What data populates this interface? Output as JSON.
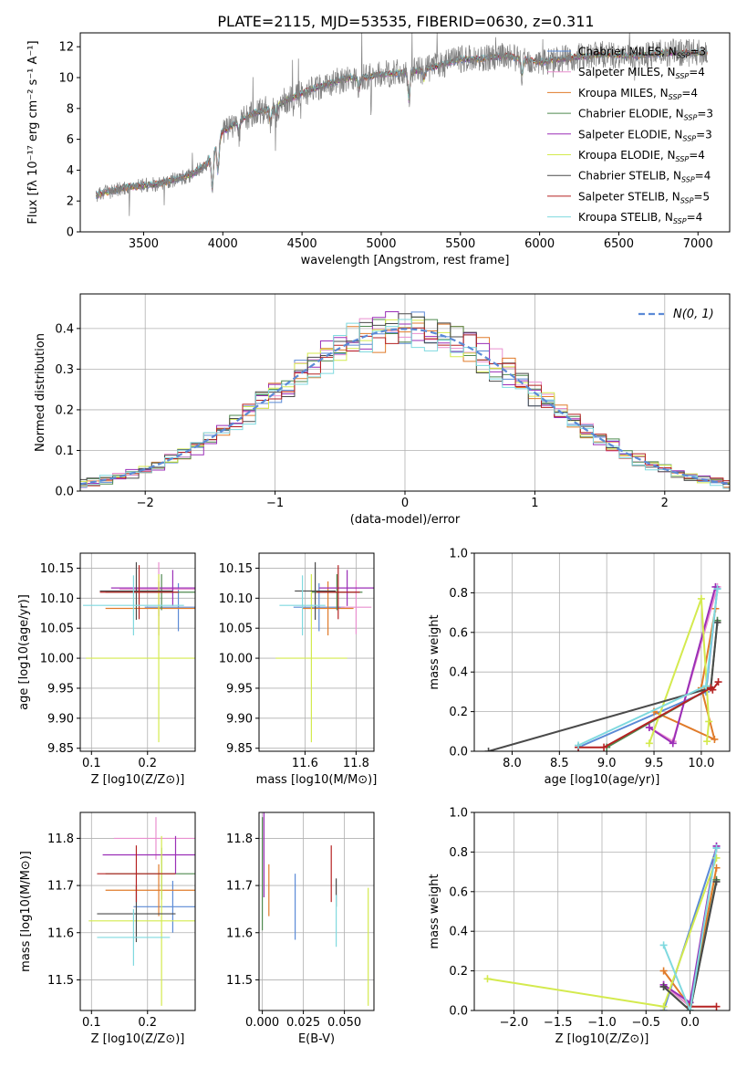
{
  "figure_title": "PLATE=2115, MJD=53535, FIBERID=0630, z=0.311",
  "colors": {
    "Chabrier MILES": "#5b8ad6",
    "Salpeter MILES": "#e98fcf",
    "Kroupa MILES": "#e07b2a",
    "Chabrier ELODIE": "#4f8a4f",
    "Salpeter ELODIE": "#9b2fb7",
    "Kroupa ELODIE": "#d4ea4e",
    "Chabrier STELIB": "#4a4a4a",
    "Salpeter STELIB": "#b52222",
    "Kroupa STELIB": "#7fd9df",
    "data": "#7f7f7f",
    "gauss": "#5b8ad6"
  },
  "chart_data": [
    {
      "id": "spectrum",
      "type": "line",
      "title": "PLATE=2115, MJD=53535, FIBERID=0630, z=0.311",
      "xlabel": "wavelength [Angstrom, rest frame]",
      "ylabel": "Flux [fλ 10⁻¹⁷ erg cm⁻² s⁻¹ A⁻¹]",
      "xlim": [
        3100,
        7200
      ],
      "ylim": [
        0,
        12.9
      ],
      "xticks": [
        3500,
        4000,
        4500,
        5000,
        5500,
        6000,
        6500,
        7000
      ],
      "yticks": [
        0,
        2,
        4,
        6,
        8,
        10,
        12
      ],
      "legend": [
        {
          "label": "Chabrier MILES, N",
          "sub": "SSP",
          "tail": "=3",
          "color_key": "Chabrier MILES"
        },
        {
          "label": "Salpeter MILES, N",
          "sub": "SSP",
          "tail": "=4",
          "color_key": "Salpeter MILES"
        },
        {
          "label": "Kroupa MILES, N",
          "sub": "SSP",
          "tail": "=4",
          "color_key": "Kroupa MILES"
        },
        {
          "label": "Chabrier ELODIE, N",
          "sub": "SSP",
          "tail": "=3",
          "color_key": "Chabrier ELODIE"
        },
        {
          "label": "Salpeter ELODIE, N",
          "sub": "SSP",
          "tail": "=3",
          "color_key": "Salpeter ELODIE"
        },
        {
          "label": "Kroupa ELODIE, N",
          "sub": "SSP",
          "tail": "=4",
          "color_key": "Kroupa ELODIE"
        },
        {
          "label": "Chabrier STELIB, N",
          "sub": "SSP",
          "tail": "=4",
          "color_key": "Chabrier STELIB"
        },
        {
          "label": "Salpeter STELIB, N",
          "sub": "SSP",
          "tail": "=5",
          "color_key": "Salpeter STELIB"
        },
        {
          "label": "Kroupa STELIB, N",
          "sub": "SSP",
          "tail": "=4",
          "color_key": "Kroupa STELIB"
        }
      ],
      "continuum": [
        [
          3200,
          2.4
        ],
        [
          3400,
          2.9
        ],
        [
          3500,
          3.0
        ],
        [
          3600,
          3.1
        ],
        [
          3700,
          3.4
        ],
        [
          3800,
          3.7
        ],
        [
          3900,
          4.4
        ],
        [
          4000,
          6.5
        ],
        [
          4100,
          7.2
        ],
        [
          4200,
          7.7
        ],
        [
          4300,
          8.0
        ],
        [
          4400,
          8.5
        ],
        [
          4500,
          9.0
        ],
        [
          4600,
          9.4
        ],
        [
          4700,
          9.7
        ],
        [
          4800,
          10.0
        ],
        [
          4900,
          10.0
        ],
        [
          5000,
          10.2
        ],
        [
          5100,
          10.3
        ],
        [
          5200,
          10.4
        ],
        [
          5300,
          10.6
        ],
        [
          5400,
          10.9
        ],
        [
          5500,
          11.2
        ],
        [
          5600,
          11.2
        ],
        [
          5700,
          11.3
        ],
        [
          5800,
          11.4
        ],
        [
          5900,
          11.2
        ],
        [
          6000,
          11.0
        ],
        [
          6200,
          11.3
        ],
        [
          6400,
          11.5
        ],
        [
          6600,
          11.4
        ],
        [
          6800,
          11.6
        ],
        [
          7000,
          11.6
        ]
      ],
      "absorption": [
        [
          3934,
          2.3
        ],
        [
          3969,
          2.0
        ],
        [
          4102,
          0.8
        ],
        [
          4300,
          0.9
        ],
        [
          4340,
          0.8
        ],
        [
          4861,
          0.8
        ],
        [
          5175,
          1.8
        ],
        [
          5270,
          0.7
        ],
        [
          5890,
          1.0
        ]
      ]
    },
    {
      "id": "residual-histogram",
      "type": "bar",
      "xlabel": "(data-model)/error",
      "ylabel": "Normed distribution",
      "xlim": [
        -2.5,
        2.5
      ],
      "ylim": [
        0,
        0.485
      ],
      "xticks": [
        -2,
        -1,
        0,
        1,
        2
      ],
      "yticks": [
        0.0,
        0.1,
        0.2,
        0.3,
        0.4
      ],
      "bin_width": 0.1,
      "legend": "N(0, 1)",
      "gaussian": {
        "mean": 0,
        "sigma": 1
      }
    },
    {
      "id": "age-vs-metallicity",
      "type": "scatter",
      "xlabel": "Z [log10(Z/Z⊙)]",
      "ylabel": "age  [log10(age/yr)]",
      "xlim": [
        0.08,
        0.285
      ],
      "ylim": [
        9.845,
        10.175
      ],
      "xticks": [
        0.1,
        0.2
      ],
      "yticks": [
        9.85,
        9.9,
        9.95,
        10.0,
        10.05,
        10.1,
        10.15
      ],
      "points": [
        {
          "key": "Chabrier MILES",
          "x": 0.255,
          "y": 10.085,
          "xerr": 0.06,
          "yerr": 0.04
        },
        {
          "key": "Salpeter MILES",
          "x": 0.22,
          "y": 10.115,
          "xerr": 0.07,
          "yerr": 0.045
        },
        {
          "key": "Kroupa MILES",
          "x": 0.22,
          "y": 10.083,
          "xerr": 0.095,
          "yerr": 0.045
        },
        {
          "key": "Chabrier ELODIE",
          "x": 0.225,
          "y": 10.11,
          "xerr": 0.1,
          "yerr": 0.03
        },
        {
          "key": "Salpeter ELODIE",
          "x": 0.245,
          "y": 10.117,
          "xerr": 0.11,
          "yerr": 0.03
        },
        {
          "key": "Kroupa ELODIE",
          "x": 0.22,
          "y": 10.0,
          "xerr": 0.13,
          "yerr": 0.14
        },
        {
          "key": "Chabrier STELIB",
          "x": 0.18,
          "y": 10.112,
          "xerr": 0.065,
          "yerr": 0.048
        },
        {
          "key": "Salpeter STELIB",
          "x": 0.185,
          "y": 10.11,
          "xerr": 0.07,
          "yerr": 0.045
        },
        {
          "key": "Kroupa STELIB",
          "x": 0.175,
          "y": 10.088,
          "xerr": 0.09,
          "yerr": 0.05
        }
      ]
    },
    {
      "id": "age-vs-mass",
      "type": "scatter",
      "xlabel": "mass [log10(M/M⊙)]",
      "ylabel": "",
      "xlim": [
        11.42,
        11.87
      ],
      "ylim": [
        9.845,
        10.175
      ],
      "xticks": [
        11.6,
        11.8
      ],
      "yticks": [
        9.85,
        9.9,
        9.95,
        10.0,
        10.05,
        10.1,
        10.15
      ],
      "points": [
        {
          "key": "Chabrier MILES",
          "x": 11.655,
          "y": 10.085,
          "xerr": 0.1,
          "yerr": 0.04
        },
        {
          "key": "Salpeter MILES",
          "x": 11.8,
          "y": 10.085,
          "xerr": 0.06,
          "yerr": 0.045
        },
        {
          "key": "Kroupa MILES",
          "x": 11.69,
          "y": 10.083,
          "xerr": 0.1,
          "yerr": 0.045
        },
        {
          "key": "Chabrier ELODIE",
          "x": 11.725,
          "y": 10.11,
          "xerr": 0.1,
          "yerr": 0.03
        },
        {
          "key": "Salpeter ELODIE",
          "x": 11.765,
          "y": 10.117,
          "xerr": 0.11,
          "yerr": 0.03
        },
        {
          "key": "Kroupa ELODIE",
          "x": 11.625,
          "y": 10.0,
          "xerr": 0.14,
          "yerr": 0.14
        },
        {
          "key": "Chabrier STELIB",
          "x": 11.64,
          "y": 10.112,
          "xerr": 0.08,
          "yerr": 0.048
        },
        {
          "key": "Salpeter STELIB",
          "x": 11.73,
          "y": 10.11,
          "xerr": 0.085,
          "yerr": 0.045
        },
        {
          "key": "Kroupa STELIB",
          "x": 11.59,
          "y": 10.088,
          "xerr": 0.09,
          "yerr": 0.05
        }
      ]
    },
    {
      "id": "weight-vs-age",
      "type": "line",
      "xlabel": "age  [log10(age/yr)]",
      "ylabel": "mass weight",
      "xlim": [
        7.6,
        10.3
      ],
      "ylim": [
        0,
        1.0
      ],
      "xticks": [
        8.0,
        8.5,
        9.0,
        9.5,
        10.0
      ],
      "yticks": [
        0.0,
        0.2,
        0.4,
        0.6,
        0.8,
        1.0
      ],
      "series": [
        {
          "key": "Chabrier MILES",
          "points": [
            [
              8.7,
              0.02
            ],
            [
              10.05,
              0.3
            ],
            [
              10.17,
              0.82
            ]
          ]
        },
        {
          "key": "Salpeter MILES",
          "points": [
            [
              9.45,
              0.12
            ],
            [
              9.7,
              0.05
            ],
            [
              10.17,
              0.83
            ]
          ]
        },
        {
          "key": "Kroupa MILES",
          "points": [
            [
              9.5,
              0.2
            ],
            [
              10.14,
              0.06
            ],
            [
              10.0,
              0.32
            ],
            [
              10.15,
              0.72
            ]
          ]
        },
        {
          "key": "Chabrier ELODIE",
          "points": [
            [
              9.0,
              0.02
            ],
            [
              10.1,
              0.32
            ],
            [
              10.17,
              0.66
            ]
          ]
        },
        {
          "key": "Salpeter ELODIE",
          "points": [
            [
              9.45,
              0.12
            ],
            [
              9.7,
              0.04
            ],
            [
              10.15,
              0.83
            ]
          ]
        },
        {
          "key": "Kroupa ELODIE",
          "points": [
            [
              9.45,
              0.04
            ],
            [
              10.0,
              0.77
            ],
            [
              10.08,
              0.15
            ],
            [
              10.06,
              0.05
            ]
          ]
        },
        {
          "key": "Chabrier STELIB",
          "points": [
            [
              7.75,
              0.0
            ],
            [
              10.1,
              0.32
            ],
            [
              10.17,
              0.65
            ]
          ]
        },
        {
          "key": "Salpeter STELIB",
          "points": [
            [
              8.7,
              0.02
            ],
            [
              8.97,
              0.02
            ],
            [
              10.1,
              0.32
            ],
            [
              10.12,
              0.31
            ],
            [
              10.18,
              0.35
            ]
          ]
        },
        {
          "key": "Kroupa STELIB",
          "points": [
            [
              8.7,
              0.03
            ],
            [
              10.05,
              0.33
            ],
            [
              10.17,
              0.82
            ]
          ]
        }
      ]
    },
    {
      "id": "mass-vs-metallicity",
      "type": "scatter",
      "xlabel": "Z [log10(Z/Z⊙)]",
      "ylabel": "mass [log10(M/M⊙)]",
      "xlim": [
        0.08,
        0.285
      ],
      "ylim": [
        11.435,
        11.855
      ],
      "xticks": [
        0.1,
        0.2
      ],
      "yticks": [
        11.5,
        11.6,
        11.7,
        11.8
      ],
      "points": [
        {
          "key": "Chabrier MILES",
          "x": 0.245,
          "y": 11.655,
          "xerr": 0.07,
          "yerr": 0.055
        },
        {
          "key": "Salpeter MILES",
          "x": 0.215,
          "y": 11.8,
          "xerr": 0.075,
          "yerr": 0.045
        },
        {
          "key": "Kroupa MILES",
          "x": 0.22,
          "y": 11.69,
          "xerr": 0.095,
          "yerr": 0.055
        },
        {
          "key": "Chabrier ELODIE",
          "x": 0.225,
          "y": 11.725,
          "xerr": 0.1,
          "yerr": 0.055
        },
        {
          "key": "Salpeter ELODIE",
          "x": 0.25,
          "y": 11.765,
          "xerr": 0.13,
          "yerr": 0.04
        },
        {
          "key": "Kroupa ELODIE",
          "x": 0.225,
          "y": 11.625,
          "xerr": 0.13,
          "yerr": 0.18
        },
        {
          "key": "Chabrier STELIB",
          "x": 0.18,
          "y": 11.64,
          "xerr": 0.07,
          "yerr": 0.06
        },
        {
          "key": "Salpeter STELIB",
          "x": 0.18,
          "y": 11.725,
          "xerr": 0.07,
          "yerr": 0.06
        },
        {
          "key": "Kroupa STELIB",
          "x": 0.175,
          "y": 11.59,
          "xerr": 0.065,
          "yerr": 0.06
        }
      ]
    },
    {
      "id": "mass-vs-ebv",
      "type": "scatter",
      "xlabel": "E(B-V)",
      "ylabel": "",
      "xlim": [
        -0.002,
        0.068
      ],
      "ylim": [
        11.435,
        11.855
      ],
      "xticks": [
        0.0,
        0.025,
        0.05
      ],
      "xticklabels": [
        "0.000",
        "0.025",
        "0.050"
      ],
      "yticks": [
        11.5,
        11.6,
        11.7,
        11.8
      ],
      "points": [
        {
          "key": "Chabrier MILES",
          "x": 0.02,
          "y": 11.655,
          "yerr": 0.07
        },
        {
          "key": "Salpeter MILES",
          "x": 0.0,
          "y": 11.8,
          "yerr": 0.045
        },
        {
          "key": "Kroupa MILES",
          "x": 0.004,
          "y": 11.69,
          "yerr": 0.055
        },
        {
          "key": "Chabrier ELODIE",
          "x": 0.0,
          "y": 11.725,
          "yerr": 0.12
        },
        {
          "key": "Salpeter ELODIE",
          "x": 0.001,
          "y": 11.765,
          "yerr": 0.09
        },
        {
          "key": "Kroupa ELODIE",
          "x": 0.0645,
          "y": 11.57,
          "yerr": 0.125
        },
        {
          "key": "Chabrier STELIB",
          "x": 0.045,
          "y": 11.685,
          "yerr": 0.03
        },
        {
          "key": "Salpeter STELIB",
          "x": 0.042,
          "y": 11.725,
          "yerr": 0.06
        },
        {
          "key": "Kroupa STELIB",
          "x": 0.045,
          "y": 11.625,
          "yerr": 0.055
        }
      ]
    },
    {
      "id": "weight-vs-metallicity",
      "type": "line",
      "xlabel": "Z [log10(Z/Z⊙)]",
      "ylabel": "mass weight",
      "xlim": [
        -2.45,
        0.45
      ],
      "ylim": [
        0,
        1.0
      ],
      "xticks": [
        -2.0,
        -1.5,
        -1.0,
        -0.5,
        0.0
      ],
      "yticks": [
        0.0,
        0.2,
        0.4,
        0.6,
        0.8,
        1.0
      ],
      "series": [
        {
          "key": "Chabrier MILES",
          "points": [
            [
              -0.3,
              0.0
            ],
            [
              0.3,
              0.82
            ]
          ]
        },
        {
          "key": "Salpeter MILES",
          "points": [
            [
              -0.3,
              0.13
            ],
            [
              0.0,
              0.02
            ],
            [
              0.3,
              0.83
            ]
          ]
        },
        {
          "key": "Kroupa MILES",
          "points": [
            [
              -0.3,
              0.2
            ],
            [
              0.0,
              0.02
            ],
            [
              0.3,
              0.72
            ]
          ]
        },
        {
          "key": "Chabrier ELODIE",
          "points": [
            [
              -0.3,
              0.12
            ],
            [
              0.0,
              0.0
            ],
            [
              0.3,
              0.66
            ]
          ]
        },
        {
          "key": "Salpeter ELODIE",
          "points": [
            [
              -0.3,
              0.13
            ],
            [
              0.0,
              0.04
            ],
            [
              0.3,
              0.83
            ]
          ]
        },
        {
          "key": "Kroupa ELODIE",
          "points": [
            [
              -2.3,
              0.16
            ],
            [
              -0.3,
              0.02
            ],
            [
              0.3,
              0.77
            ]
          ]
        },
        {
          "key": "Chabrier STELIB",
          "points": [
            [
              -0.3,
              0.12
            ],
            [
              0.0,
              0.0
            ],
            [
              0.3,
              0.65
            ]
          ]
        },
        {
          "key": "Salpeter STELIB",
          "points": [
            [
              0.0,
              0.02
            ],
            [
              0.3,
              0.02
            ]
          ]
        },
        {
          "key": "Kroupa STELIB",
          "points": [
            [
              -0.3,
              0.33
            ],
            [
              0.0,
              0.0
            ],
            [
              0.3,
              0.82
            ]
          ]
        }
      ]
    }
  ]
}
